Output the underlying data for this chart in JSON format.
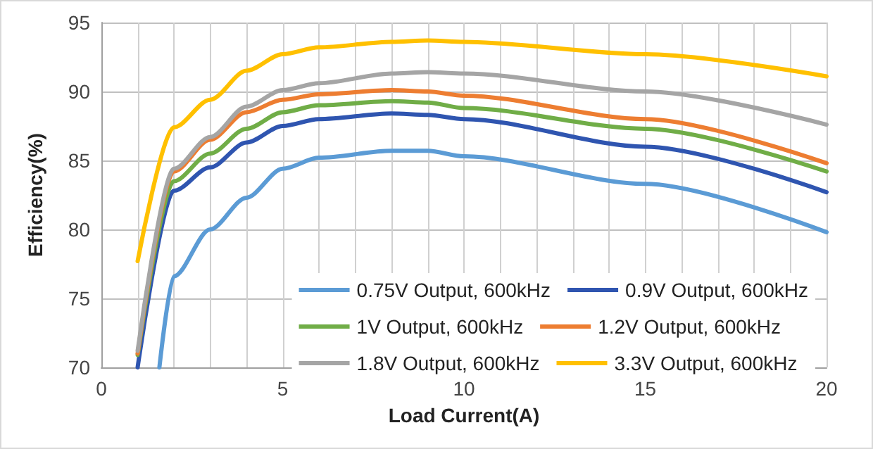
{
  "chart_data": {
    "type": "line",
    "xlabel": "Load Current(A)",
    "ylabel": "Efficiency(%)",
    "xlim": [
      0,
      20
    ],
    "xticks": [
      0,
      {
        "value": 1,
        "label": null
      },
      {
        "value": 2,
        "label": null
      },
      {
        "value": 3,
        "label": null
      },
      {
        "value": 4,
        "label": null
      },
      5,
      {
        "value": 6,
        "label": null
      },
      {
        "value": 7,
        "label": null
      },
      {
        "value": 8,
        "label": null
      },
      {
        "value": 9,
        "label": null
      },
      10,
      {
        "value": 11,
        "label": null
      },
      {
        "value": 12,
        "label": null
      },
      {
        "value": 13,
        "label": null
      },
      {
        "value": 14,
        "label": null
      },
      15,
      {
        "value": 16,
        "label": null
      },
      {
        "value": 17,
        "label": null
      },
      {
        "value": 18,
        "label": null
      },
      {
        "value": 19,
        "label": null
      },
      20
    ],
    "ylim": [
      70,
      95
    ],
    "yticks": [
      70,
      75,
      80,
      85,
      90,
      95
    ],
    "grid": true,
    "legend": "bottom right",
    "marker": "none",
    "line_style": "solid",
    "series": [
      {
        "name": "0.75V Output, 600kHz",
        "color": "#5b9bd5",
        "x": [
          1.6,
          2,
          3,
          4,
          5,
          6,
          8,
          9,
          10,
          15,
          20
        ],
        "values": [
          70,
          76.6,
          80.0,
          82.3,
          84.4,
          85.2,
          85.7,
          85.7,
          85.3,
          83.3,
          79.8
        ]
      },
      {
        "name": "0.9V Output, 600kHz",
        "color": "#2f55b0",
        "x": [
          1,
          2,
          3,
          4,
          5,
          6,
          8,
          9,
          10,
          15,
          20
        ],
        "values": [
          70,
          82.8,
          84.5,
          86.3,
          87.5,
          88.0,
          88.4,
          88.3,
          88.0,
          86.0,
          82.7
        ]
      },
      {
        "name": "1V Output, 600kHz",
        "color": "#70ad47",
        "x": [
          1,
          2,
          3,
          4,
          5,
          6,
          8,
          9,
          10,
          15,
          20
        ],
        "values": [
          70.9,
          83.5,
          85.5,
          87.3,
          88.5,
          89.0,
          89.3,
          89.2,
          88.8,
          87.3,
          84.2
        ]
      },
      {
        "name": "1.2V Output, 600kHz",
        "color": "#ed7d31",
        "x": [
          1,
          2,
          3,
          4,
          5,
          6,
          8,
          9,
          10,
          15,
          20
        ],
        "values": [
          71.0,
          84.2,
          86.5,
          88.5,
          89.4,
          89.8,
          90.1,
          90.0,
          89.7,
          88.0,
          84.8
        ]
      },
      {
        "name": "1.8V Output, 600kHz",
        "color": "#a5a5a5",
        "x": [
          1,
          2,
          3,
          4,
          5,
          6,
          8,
          9,
          10,
          15,
          20
        ],
        "values": [
          71.2,
          84.4,
          86.7,
          88.9,
          90.1,
          90.6,
          91.3,
          91.4,
          91.3,
          90.0,
          87.6
        ]
      },
      {
        "name": "3.3V Output, 600kHz",
        "color": "#ffc000",
        "x": [
          1,
          2,
          3,
          4,
          5,
          6,
          8,
          9,
          10,
          15,
          20
        ],
        "values": [
          77.7,
          87.4,
          89.4,
          91.5,
          92.7,
          93.2,
          93.6,
          93.7,
          93.6,
          92.7,
          91.1
        ]
      }
    ]
  }
}
